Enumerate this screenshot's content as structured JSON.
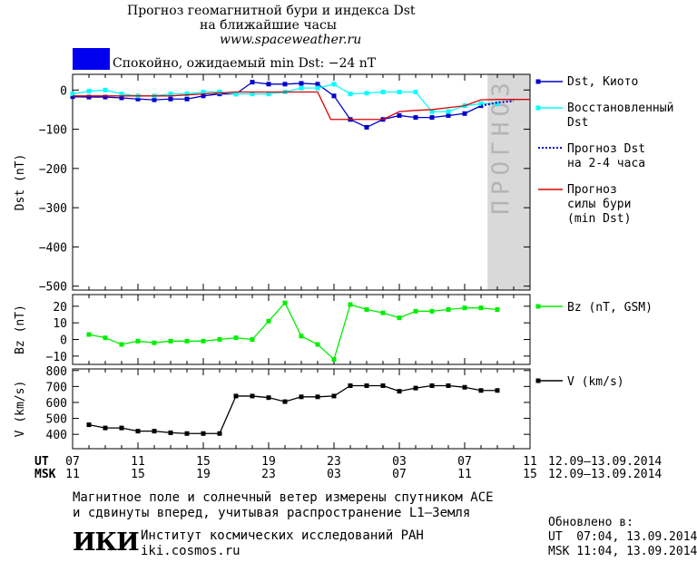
{
  "header": {
    "title_line1": "Прогноз геомагнитной бури и индекса Dst",
    "title_line2": "на ближайшие часы",
    "url": "www.spaceweather.ru",
    "status": "Спокойно, ожидаемый min Dst: −24 nT",
    "status_color": "#0000ee"
  },
  "colors": {
    "dst_kyoto": "#0000cc",
    "dst_restored": "#00ffff",
    "forecast_2_4h": "#0000cc",
    "storm_forecast": "#dd0000",
    "bz": "#00ee00",
    "v": "#000000",
    "forecast_band": "#d9d9d9"
  },
  "forecast_band_label": "ПРОГНОЗ",
  "time_axis": {
    "ut_label": "UT",
    "msk_label": "MSK",
    "ut_ticks": [
      "07",
      "11",
      "15",
      "19",
      "23",
      "03",
      "07",
      "11"
    ],
    "msk_ticks": [
      "11",
      "15",
      "19",
      "23",
      "03",
      "07",
      "11",
      "15"
    ],
    "ut_range": "12.09–13.09.2014",
    "msk_range": "12.09–13.09.2014"
  },
  "chart_data": [
    {
      "type": "line",
      "name": "dst",
      "ylabel": "Dst (nT)",
      "ylim": [
        -510,
        40
      ],
      "yticks": [
        0,
        -100,
        -200,
        -300,
        -400,
        -500
      ],
      "ytick_labels": [
        "0",
        "−100",
        "−200",
        "−300",
        "−400",
        "−500"
      ],
      "xlim": [
        7,
        35
      ],
      "forecast_band": [
        32.4,
        35
      ],
      "series": [
        {
          "name": "Dst, Киото",
          "color_key": "dst_kyoto",
          "x": [
            7,
            8,
            9,
            10,
            11,
            12,
            13,
            14,
            15,
            16,
            17,
            18,
            19,
            20,
            21,
            22,
            23,
            24,
            25,
            26,
            27,
            28,
            29,
            30,
            31,
            32
          ],
          "y": [
            -17,
            -18,
            -18,
            -20,
            -23,
            -25,
            -23,
            -23,
            -15,
            -10,
            -10,
            20,
            15,
            15,
            17,
            15,
            -15,
            -75,
            -95,
            -75,
            -65,
            -70,
            -70,
            -65,
            -60,
            -40
          ]
        },
        {
          "name": "Восстановленный Dst",
          "color_key": "dst_restored",
          "x": [
            7,
            8,
            9,
            10,
            11,
            12,
            13,
            14,
            15,
            16,
            17,
            18,
            19,
            20,
            21,
            22,
            23,
            24,
            25,
            26,
            27,
            28,
            29,
            30,
            31,
            32,
            33
          ],
          "y": [
            -10,
            -3,
            0,
            -10,
            -15,
            -15,
            -10,
            -10,
            -5,
            -5,
            -10,
            -10,
            -10,
            -5,
            5,
            5,
            15,
            -10,
            -8,
            -5,
            -5,
            -5,
            -55,
            -55,
            -40,
            -35,
            -35
          ]
        },
        {
          "name": "Прогноз Dst на 2-4 часа",
          "color_key": "forecast_2_4h",
          "dotted": true,
          "x": [
            32,
            33,
            34
          ],
          "y": [
            -40,
            -32,
            -28
          ]
        },
        {
          "name": "Прогноз силы бури (min Dst)",
          "color_key": "storm_forecast",
          "x": [
            7,
            9,
            11,
            13,
            15,
            17,
            19,
            20,
            21,
            22,
            22.8,
            24,
            25,
            26,
            27,
            28,
            29,
            30,
            31,
            32,
            33,
            34,
            35
          ],
          "y": [
            -15,
            -15,
            -15,
            -15,
            -10,
            -5,
            -5,
            -5,
            -5,
            -5,
            -75,
            -75,
            -75,
            -75,
            -55,
            -52,
            -50,
            -45,
            -40,
            -25,
            -24,
            -24,
            -24
          ]
        }
      ]
    },
    {
      "type": "line",
      "name": "bz",
      "ylabel": "Bz (nT)",
      "ylim": [
        -15,
        27
      ],
      "yticks": [
        20,
        10,
        0,
        -10
      ],
      "ytick_labels": [
        "20",
        "10",
        "0",
        "−10"
      ],
      "xlim": [
        7,
        35
      ],
      "series": [
        {
          "name": "Bz (nT, GSM)",
          "color_key": "bz",
          "x": [
            8,
            9,
            10,
            11,
            12,
            13,
            14,
            15,
            16,
            17,
            18,
            19,
            20,
            21,
            22,
            23,
            24,
            25,
            26,
            27,
            28,
            29,
            30,
            31,
            32,
            33
          ],
          "y": [
            3,
            1,
            -3,
            -1,
            -2,
            -1,
            -1,
            -1,
            0,
            1,
            0,
            11,
            22,
            2,
            -3,
            -12,
            21,
            18,
            16,
            13,
            17,
            17,
            18,
            19,
            19,
            18
          ]
        }
      ]
    },
    {
      "type": "line",
      "name": "v",
      "ylabel": "V (km/s)",
      "ylim": [
        310,
        810
      ],
      "yticks": [
        400,
        500,
        600,
        700,
        800
      ],
      "ytick_labels": [
        "400",
        "500",
        "600",
        "700",
        "800"
      ],
      "xlim": [
        7,
        35
      ],
      "series": [
        {
          "name": "V (km/s)",
          "color_key": "v",
          "x": [
            8,
            9,
            10,
            11,
            12,
            13,
            14,
            15,
            16,
            17,
            18,
            19,
            20,
            21,
            22,
            23,
            24,
            25,
            26,
            27,
            28,
            29,
            30,
            31,
            32,
            33
          ],
          "y": [
            460,
            440,
            440,
            420,
            420,
            410,
            405,
            405,
            405,
            640,
            640,
            630,
            605,
            635,
            635,
            640,
            705,
            705,
            705,
            670,
            690,
            705,
            705,
            695,
            675,
            675
          ]
        }
      ]
    }
  ],
  "legend": {
    "dst_kyoto": "Dst, Киото",
    "restored_1": "Восстановленный",
    "restored_2": "Dst",
    "forecast_1": "Прогноз Dst",
    "forecast_2": "на 2-4 часа",
    "storm_1": "Прогноз",
    "storm_2": "силы бури",
    "storm_3": "(min Dst)",
    "bz": "Bz (nT, GSM)",
    "v": "V (km/s)"
  },
  "footer": {
    "note_1": "Магнитное поле и солнечный ветер измерены спутником ACE",
    "note_2": "и сдвинуты вперед, учитывая распространение L1–Земля",
    "logo": "ИКИ",
    "institute": "Институт космических исследований РАН",
    "site": "iki.cosmos.ru",
    "updated_label": "Обновлено в:",
    "updated_ut": "UT  07:04, 13.09.2014",
    "updated_msk": "MSK 11:04, 13.09.2014"
  }
}
